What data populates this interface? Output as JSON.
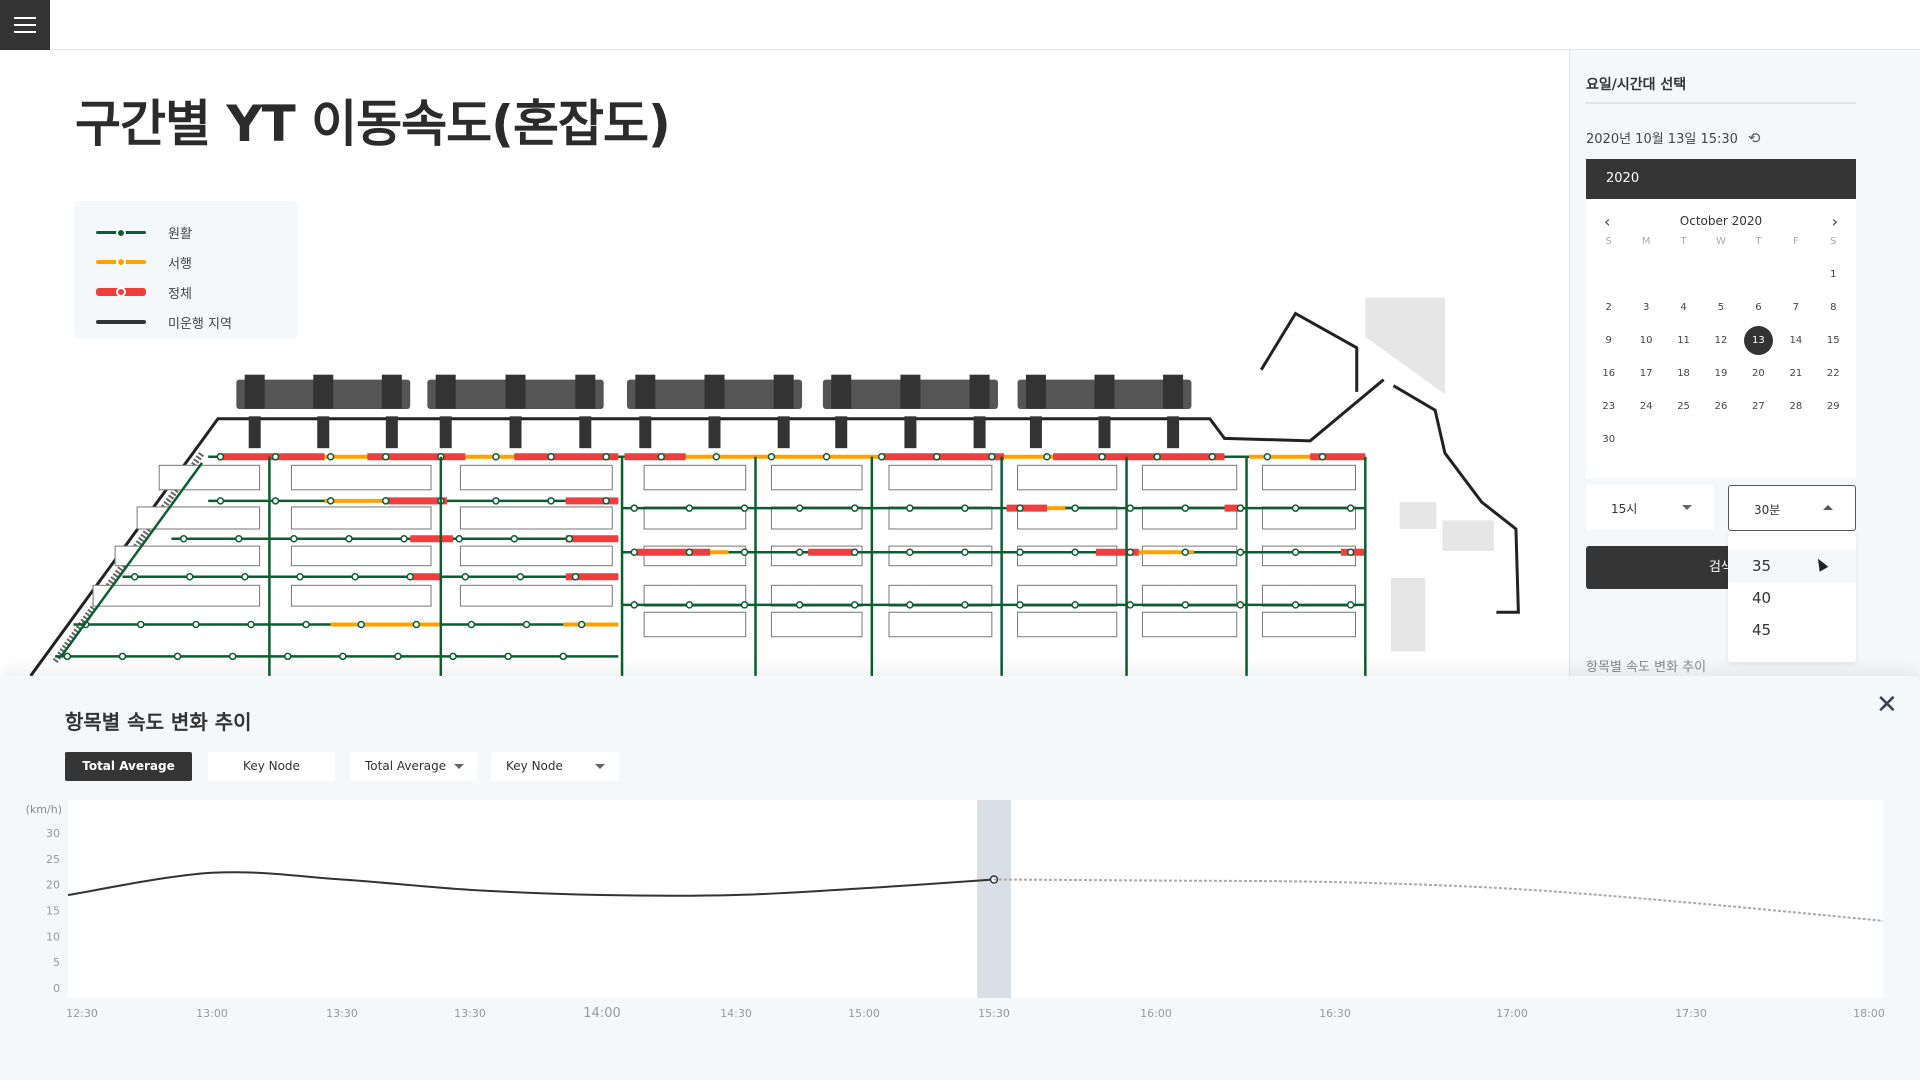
{
  "header": {
    "menu_icon": "hamburger-icon"
  },
  "page_title": "구간별 YT 이동속도(혼잡도)",
  "legend": [
    {
      "label": "원활",
      "color": "#0b5e2f"
    },
    {
      "label": "서행",
      "color": "#ffa200"
    },
    {
      "label": "정체",
      "color": "#f23d3d"
    },
    {
      "label": "미운행 지역",
      "color": "#333333"
    }
  ],
  "right_panel": {
    "title": "요일/시간대 선택",
    "datetime": "2020년 10월 13일 15:30",
    "refresh_icon": "refresh-icon",
    "calendar": {
      "year": "2020",
      "month": "October 2020",
      "weekdays": [
        "S",
        "M",
        "T",
        "W",
        "T",
        "F",
        "S"
      ],
      "days": [
        "",
        "",
        "",
        "",
        "",
        "",
        "1",
        "2",
        "3",
        "4",
        "5",
        "6",
        "7",
        "8",
        "9",
        "10",
        "11",
        "12",
        "13",
        "14",
        "15",
        "16",
        "17",
        "18",
        "19",
        "20",
        "21",
        "22",
        "23",
        "24",
        "25",
        "26",
        "27",
        "28",
        "29",
        "30"
      ],
      "selected": "13"
    },
    "hour_select": "15시",
    "minute_select": "30분",
    "minute_options": [
      "35",
      "40",
      "45"
    ],
    "hovered_option": "35",
    "search_label": "검색",
    "sub_title": "항목별 속도 변화 추이"
  },
  "bottom_panel": {
    "title": "항목별 속도 변화 추이",
    "buttons": [
      "Total Average",
      "Key Node"
    ],
    "dropdowns": [
      "Total Average",
      "Key Node"
    ],
    "close_icon": "close-icon"
  },
  "chart_data": {
    "type": "line",
    "ylabel": "(km/h)",
    "ylim": [
      0,
      30
    ],
    "yticks": [
      30,
      25,
      20,
      15,
      10,
      5,
      0
    ],
    "categories": [
      "12:30",
      "13:00",
      "13:30",
      "13:30",
      "14:00",
      "14:30",
      "15:00",
      "15:30",
      "16:00",
      "16:30",
      "17:00",
      "17:30",
      "18:00"
    ],
    "series": [
      {
        "style": "solid",
        "color": "#333333",
        "values": [
          18,
          22.3,
          21,
          19,
          18,
          18,
          19.3,
          21,
          null,
          null,
          null,
          null,
          null
        ]
      },
      {
        "style": "dashed",
        "color": "#aaaaaa",
        "values": [
          null,
          null,
          null,
          null,
          null,
          null,
          null,
          21,
          20.8,
          20.5,
          19.2,
          16.5,
          13
        ]
      }
    ],
    "highlight": "15:30",
    "grid": false
  }
}
